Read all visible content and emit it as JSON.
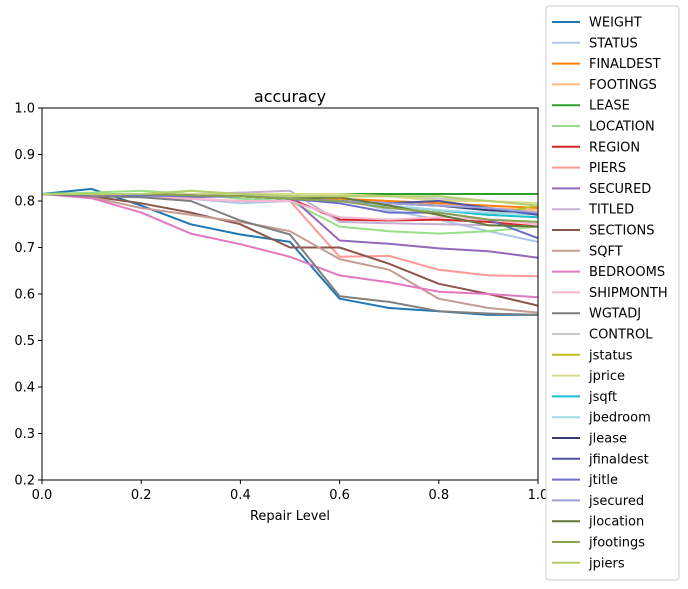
{
  "chart_data": {
    "type": "line",
    "title": "accuracy",
    "xlabel": "Repair Level",
    "ylabel": "",
    "xlim": [
      0.0,
      1.0
    ],
    "ylim": [
      0.2,
      1.0
    ],
    "xticks": [
      "0.0",
      "0.2",
      "0.4",
      "0.6",
      "0.8",
      "1.0"
    ],
    "yticks": [
      "0.2",
      "0.3",
      "0.4",
      "0.5",
      "0.6",
      "0.7",
      "0.8",
      "0.9",
      "1.0"
    ],
    "legend_position": "outside-right",
    "grid": false,
    "x": [
      0.0,
      0.1,
      0.2,
      0.3,
      0.4,
      0.5,
      0.6,
      0.7,
      0.8,
      0.9,
      1.0
    ],
    "series": [
      {
        "name": "WEIGHT",
        "color": "#1f77b4",
        "values": [
          0.815,
          0.826,
          0.79,
          0.75,
          0.728,
          0.712,
          0.59,
          0.57,
          0.563,
          0.555,
          0.555
        ]
      },
      {
        "name": "STATUS",
        "color": "#aec7e8",
        "values": [
          0.815,
          0.81,
          0.812,
          0.805,
          0.795,
          0.8,
          0.805,
          0.78,
          0.76,
          0.735,
          0.712
        ]
      },
      {
        "name": "FINALDEST",
        "color": "#ff7f0e",
        "values": [
          0.815,
          0.815,
          0.813,
          0.812,
          0.81,
          0.808,
          0.805,
          0.8,
          0.795,
          0.79,
          0.785
        ]
      },
      {
        "name": "FOOTINGS",
        "color": "#ffbb78",
        "values": [
          0.815,
          0.815,
          0.815,
          0.815,
          0.81,
          0.805,
          0.8,
          0.795,
          0.79,
          0.785,
          0.78
        ]
      },
      {
        "name": "LEASE",
        "color": "#2ca02c",
        "values": [
          0.815,
          0.815,
          0.815,
          0.815,
          0.815,
          0.815,
          0.815,
          0.815,
          0.815,
          0.815,
          0.815
        ]
      },
      {
        "name": "LOCATION",
        "color": "#98df8a",
        "values": [
          0.815,
          0.818,
          0.822,
          0.815,
          0.805,
          0.8,
          0.745,
          0.735,
          0.73,
          0.735,
          0.745
        ]
      },
      {
        "name": "REGION",
        "color": "#d62728",
        "values": [
          0.815,
          0.815,
          0.815,
          0.812,
          0.81,
          0.805,
          0.76,
          0.758,
          0.76,
          0.755,
          0.745
        ]
      },
      {
        "name": "PIERS",
        "color": "#ff9896",
        "values": [
          0.815,
          0.812,
          0.81,
          0.805,
          0.8,
          0.8,
          0.68,
          0.682,
          0.652,
          0.64,
          0.638
        ]
      },
      {
        "name": "SECURED",
        "color": "#9467bd",
        "values": [
          0.815,
          0.812,
          0.81,
          0.808,
          0.81,
          0.81,
          0.715,
          0.708,
          0.698,
          0.692,
          0.678
        ]
      },
      {
        "name": "TITLED",
        "color": "#c5b0d5",
        "values": [
          0.815,
          0.815,
          0.815,
          0.815,
          0.818,
          0.822,
          0.755,
          0.752,
          0.75,
          0.748,
          0.745
        ]
      },
      {
        "name": "SECTIONS",
        "color": "#8c564b",
        "values": [
          0.815,
          0.81,
          0.795,
          0.775,
          0.75,
          0.7,
          0.7,
          0.665,
          0.622,
          0.6,
          0.575
        ]
      },
      {
        "name": "SQFT",
        "color": "#c49c94",
        "values": [
          0.815,
          0.808,
          0.785,
          0.77,
          0.755,
          0.735,
          0.675,
          0.652,
          0.59,
          0.57,
          0.56
        ]
      },
      {
        "name": "BEDROOMS",
        "color": "#e377c2",
        "values": [
          0.815,
          0.806,
          0.775,
          0.73,
          0.707,
          0.68,
          0.64,
          0.625,
          0.605,
          0.6,
          0.593
        ]
      },
      {
        "name": "SHIPMONTH",
        "color": "#f7b6d2",
        "values": [
          0.815,
          0.812,
          0.81,
          0.805,
          0.8,
          0.8,
          0.765,
          0.76,
          0.765,
          0.76,
          0.75
        ]
      },
      {
        "name": "WGTADJ",
        "color": "#7f7f7f",
        "values": [
          0.815,
          0.81,
          0.808,
          0.8,
          0.758,
          0.728,
          0.595,
          0.583,
          0.563,
          0.558,
          0.555
        ]
      },
      {
        "name": "CONTROL",
        "color": "#c7c7c7",
        "values": [
          0.815,
          0.815,
          0.815,
          0.815,
          0.815,
          0.81,
          0.81,
          0.81,
          0.805,
          0.8,
          0.795
        ]
      },
      {
        "name": "jstatus",
        "color": "#bcbd22",
        "values": [
          0.815,
          0.815,
          0.815,
          0.815,
          0.812,
          0.81,
          0.8,
          0.79,
          0.78,
          0.77,
          0.79
        ]
      },
      {
        "name": "jprice",
        "color": "#dbdb8d",
        "values": [
          0.815,
          0.815,
          0.815,
          0.815,
          0.815,
          0.815,
          0.815,
          0.81,
          0.8,
          0.8,
          0.795
        ]
      },
      {
        "name": "jsqft",
        "color": "#17becf",
        "values": [
          0.815,
          0.815,
          0.815,
          0.812,
          0.81,
          0.805,
          0.8,
          0.79,
          0.78,
          0.77,
          0.765
        ]
      },
      {
        "name": "jbedroom",
        "color": "#9edae5",
        "values": [
          0.815,
          0.815,
          0.815,
          0.81,
          0.81,
          0.805,
          0.8,
          0.79,
          0.78,
          0.775,
          0.77
        ]
      },
      {
        "name": "jlease",
        "color": "#393b79",
        "values": [
          0.815,
          0.815,
          0.815,
          0.812,
          0.81,
          0.805,
          0.8,
          0.795,
          0.79,
          0.78,
          0.775
        ]
      },
      {
        "name": "jfinaldest",
        "color": "#5254a3",
        "values": [
          0.815,
          0.815,
          0.815,
          0.812,
          0.81,
          0.805,
          0.8,
          0.795,
          0.8,
          0.785,
          0.77
        ]
      },
      {
        "name": "jtitle",
        "color": "#6b6ecf",
        "values": [
          0.815,
          0.815,
          0.812,
          0.81,
          0.81,
          0.805,
          0.795,
          0.775,
          0.775,
          0.76,
          0.72
        ]
      },
      {
        "name": "jsecured",
        "color": "#9c9ede",
        "values": [
          0.815,
          0.815,
          0.815,
          0.812,
          0.81,
          0.808,
          0.8,
          0.795,
          0.79,
          0.785,
          0.775
        ]
      },
      {
        "name": "jlocation",
        "color": "#637939",
        "values": [
          0.815,
          0.815,
          0.815,
          0.812,
          0.81,
          0.805,
          0.808,
          0.79,
          0.77,
          0.748,
          0.745
        ]
      },
      {
        "name": "jfootings",
        "color": "#8ca252",
        "values": [
          0.815,
          0.815,
          0.815,
          0.812,
          0.81,
          0.805,
          0.8,
          0.785,
          0.775,
          0.76,
          0.755
        ]
      },
      {
        "name": "jpiers",
        "color": "#b5cf6b",
        "values": [
          0.815,
          0.815,
          0.815,
          0.822,
          0.815,
          0.81,
          0.81,
          0.81,
          0.81,
          0.8,
          0.79
        ]
      }
    ]
  }
}
